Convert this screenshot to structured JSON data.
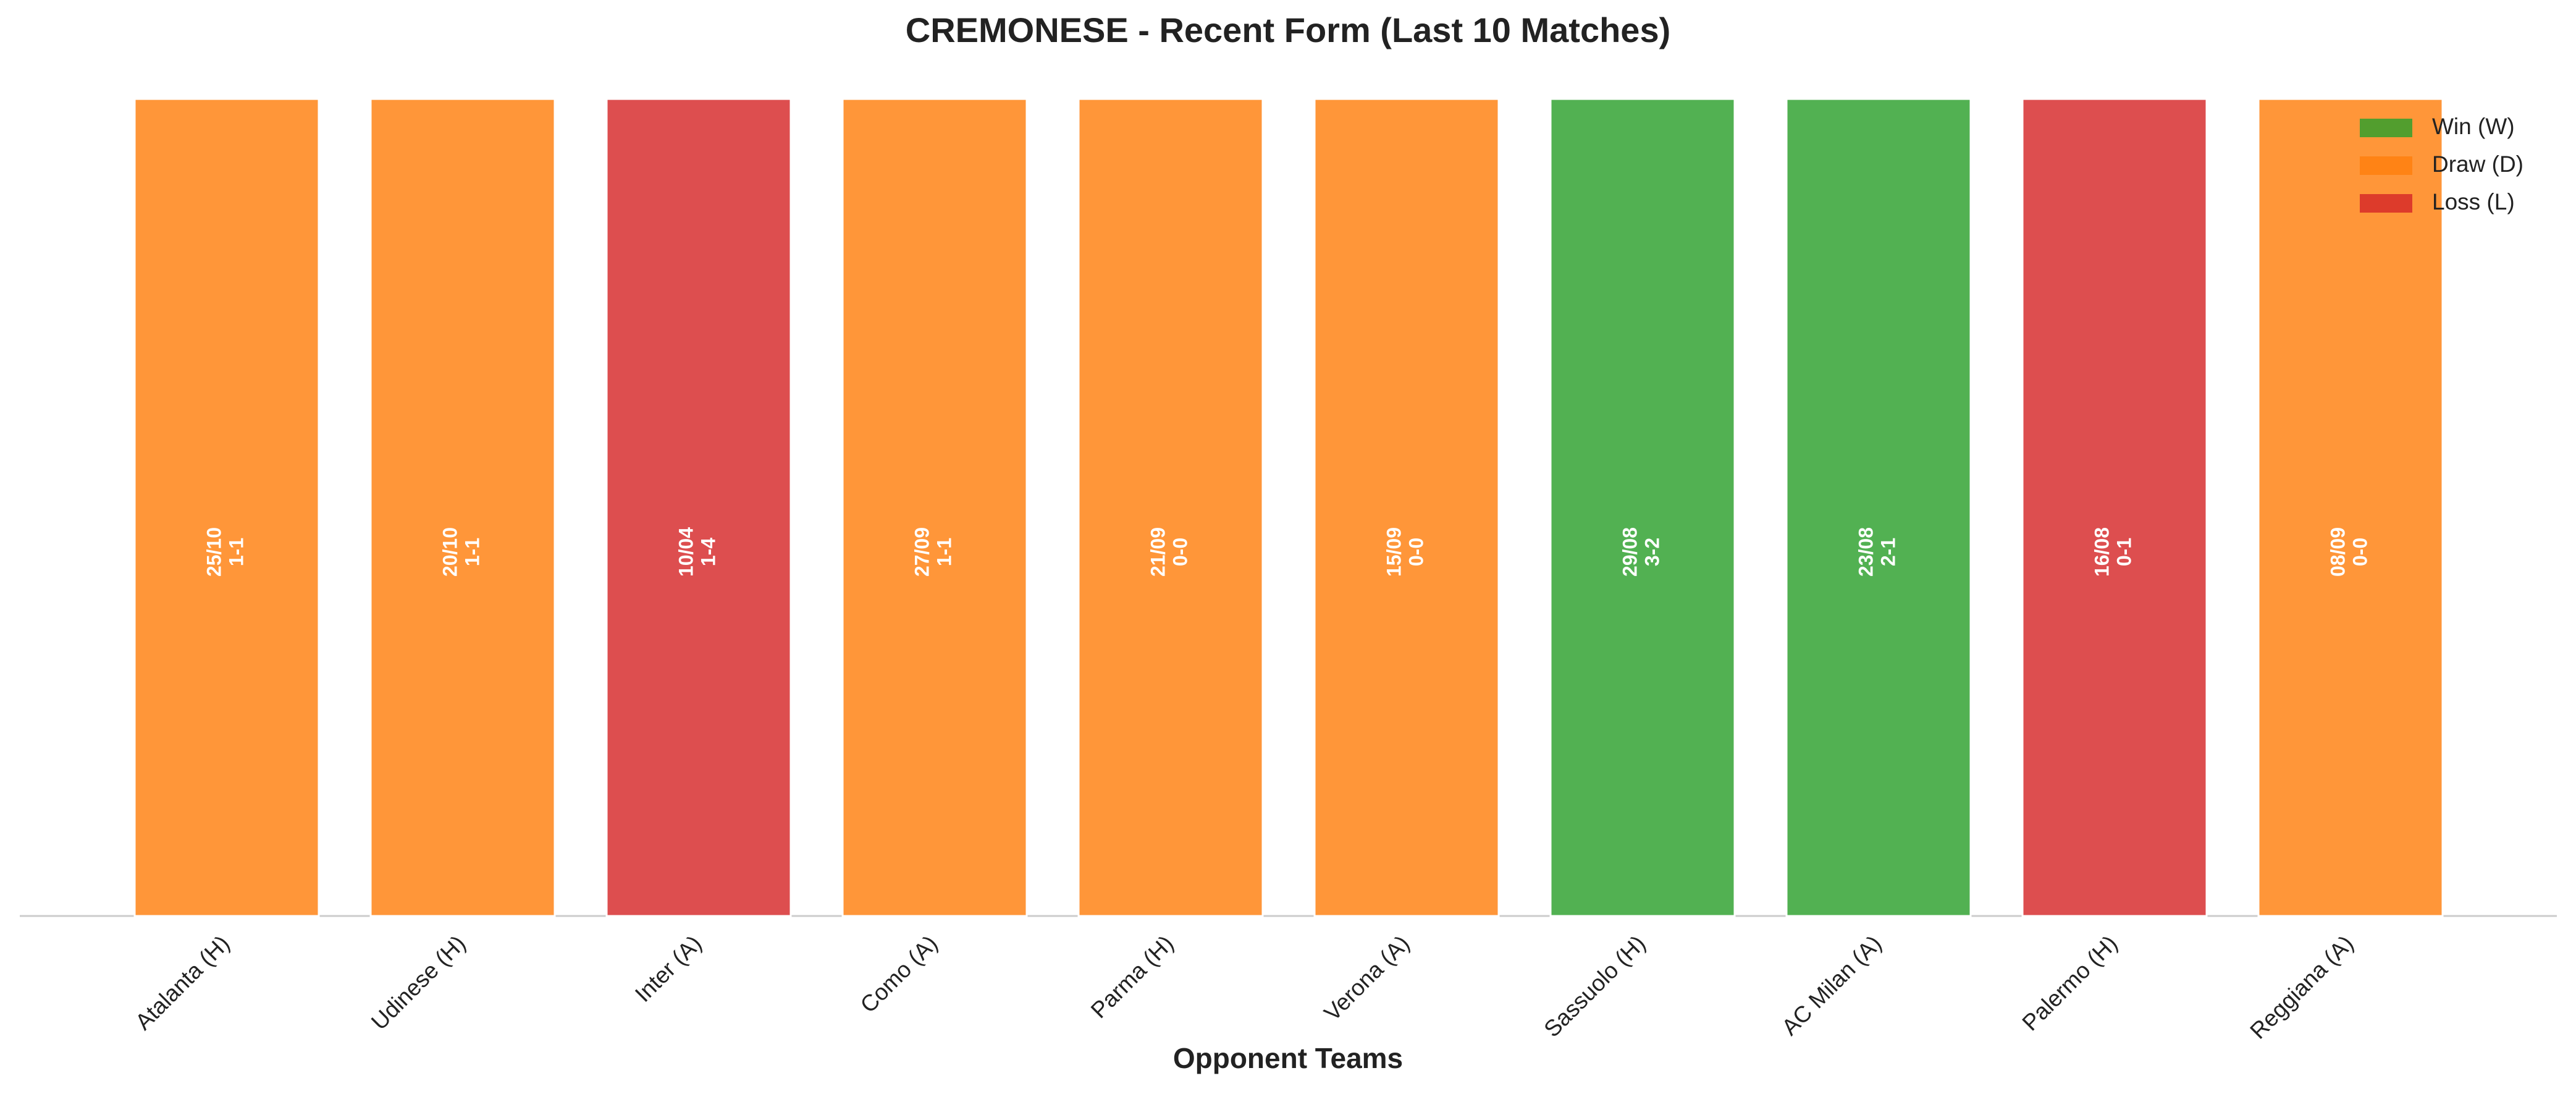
{
  "chart_data": {
    "type": "bar",
    "title": "CREMONESE - Recent Form (Last 10 Matches)",
    "xlabel": "Opponent Teams",
    "categories": [
      "Atalanta (H)",
      "Udinese (H)",
      "Inter (A)",
      "Como (A)",
      "Parma (H)",
      "Verona (A)",
      "Sassuolo (H)",
      "AC Milan (A)",
      "Palermo (H)",
      "Reggiana (A)"
    ],
    "dates": [
      "25/10",
      "20/10",
      "10/04",
      "27/09",
      "21/09",
      "15/09",
      "29/08",
      "23/08",
      "16/08",
      "08/09"
    ],
    "scores": [
      "1-1",
      "1-1",
      "1-4",
      "1-1",
      "0-0",
      "0-0",
      "3-2",
      "2-1",
      "0-1",
      "0-0"
    ],
    "series": [
      {
        "name": "Win (W)",
        "color": "#2ca02c",
        "values": [
          null,
          null,
          null,
          null,
          null,
          null,
          1,
          1,
          null,
          null
        ]
      },
      {
        "name": "Draw (D)",
        "color": "#ff7f0e",
        "values": [
          1,
          1,
          null,
          1,
          1,
          1,
          null,
          null,
          null,
          1
        ]
      },
      {
        "name": "Loss (L)",
        "color": "#d62728",
        "values": [
          null,
          null,
          1,
          null,
          null,
          null,
          null,
          null,
          1,
          null
        ]
      }
    ],
    "alpha": 0.82,
    "ylim": [
      0,
      1.05
    ],
    "legend": "upper right"
  }
}
